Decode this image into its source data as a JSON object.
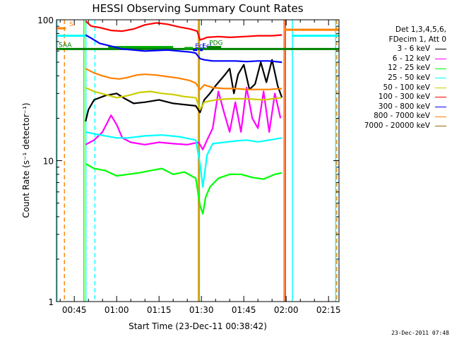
{
  "chart_data": {
    "type": "line",
    "title": "HESSI Observing Summary Count Rates",
    "xlabel": "Start Time (23-Dec-11 00:38:42)",
    "ylabel": "Count Rate (s⁻¹ detector⁻¹)",
    "x_unit": "minutes of 23-Dec-2011 UT",
    "xlim": [
      38.7,
      138.7
    ],
    "ylim": [
      1,
      100
    ],
    "y_scale": "log",
    "x_ticks": [
      {
        "value": 45,
        "label": "00:45"
      },
      {
        "value": 60,
        "label": "01:00"
      },
      {
        "value": 75,
        "label": "01:15"
      },
      {
        "value": 90,
        "label": "01:30"
      },
      {
        "value": 105,
        "label": "01:45"
      },
      {
        "value": 120,
        "label": "02:00"
      },
      {
        "value": 135,
        "label": "02:15"
      }
    ],
    "y_ticks": [
      {
        "value": 1,
        "label": "1"
      },
      {
        "value": 10,
        "label": "10"
      },
      {
        "value": 100,
        "label": "100"
      }
    ],
    "legend_header": [
      "Det 1,3,4,5,6,",
      "FDecim 1, Att 0"
    ],
    "legend_placement": "outside-right",
    "grid": false,
    "series": [
      {
        "name": "3 - 6 keV",
        "color": "#000000",
        "x": [
          49,
          50,
          52,
          56,
          60,
          63,
          66,
          70,
          75,
          80,
          84,
          88,
          89.5,
          91,
          93,
          95,
          98,
          100,
          101.5,
          103,
          105,
          107,
          109,
          111,
          113,
          115,
          117,
          118.5
        ],
        "y": [
          19,
          23,
          27,
          29,
          30,
          27.5,
          25.5,
          26,
          27,
          25.5,
          25,
          24.5,
          22,
          27,
          30,
          34,
          40,
          45,
          30,
          41,
          48,
          32,
          35,
          50,
          36,
          52,
          34,
          28
        ]
      },
      {
        "name": "6 - 12 keV",
        "color": "#ff00ff",
        "x": [
          49,
          52,
          55,
          58,
          60,
          62,
          65,
          70,
          75,
          80,
          85,
          89,
          90.5,
          92,
          94,
          96,
          98,
          100,
          102,
          104,
          106,
          108,
          110,
          112,
          114,
          116,
          118
        ],
        "y": [
          13,
          14,
          16,
          21,
          18,
          14.5,
          13.5,
          13,
          13.5,
          13.2,
          13,
          13.5,
          12,
          14,
          17,
          31,
          22,
          16,
          26,
          16,
          33,
          20,
          17,
          31,
          16,
          30,
          20
        ]
      },
      {
        "name": "12 - 25 keV",
        "color": "#00ff00",
        "x": [
          49,
          52,
          56,
          60,
          64,
          68,
          72,
          76,
          80,
          84,
          88,
          89.5,
          90.5,
          91.5,
          93,
          96,
          100,
          104,
          108,
          112,
          116,
          118.5
        ],
        "y": [
          9.5,
          8.8,
          8.5,
          7.8,
          8,
          8.2,
          8.5,
          8.8,
          8,
          8.3,
          7.5,
          4.8,
          4.2,
          5.5,
          6.5,
          7.5,
          8,
          8,
          7.6,
          7.4,
          8,
          8.2
        ]
      },
      {
        "name": "25 - 50 keV",
        "color": "#00ffff",
        "x": [
          49,
          52,
          56,
          60,
          64,
          70,
          76,
          82,
          88,
          89.5,
          90.5,
          92,
          94,
          98,
          102,
          106,
          110,
          114,
          118.5
        ],
        "y": [
          16,
          15.5,
          15,
          14.5,
          14.5,
          15,
          15.2,
          14.8,
          14,
          9.5,
          6.5,
          11,
          13.2,
          13.5,
          13.8,
          14,
          13.6,
          14,
          14.5
        ]
      },
      {
        "name": "50 - 100 keV",
        "color": "#cccc00",
        "x": [
          49,
          52,
          56,
          60,
          64,
          68,
          72,
          76,
          80,
          84,
          88,
          89.5,
          91,
          95,
          100,
          106,
          112,
          118.5
        ],
        "y": [
          33,
          31,
          29.5,
          28,
          29,
          30.5,
          31,
          30,
          29.5,
          28.5,
          28,
          23,
          26,
          27,
          27.5,
          27.5,
          27,
          28
        ]
      },
      {
        "name": "100 - 300 keV",
        "color": "#ff0000",
        "x": [
          49,
          51,
          54,
          58,
          62,
          66,
          70,
          74,
          78,
          82,
          86,
          88.5,
          89.5,
          90.5,
          92,
          96,
          100,
          105,
          110,
          115,
          118.5
        ],
        "y": [
          98,
          90,
          88,
          84,
          83,
          86,
          92,
          95,
          93,
          89,
          86,
          83,
          72,
          73,
          75,
          76,
          75,
          76,
          77,
          77,
          78
        ]
      },
      {
        "name": "300 - 800 keV",
        "color": "#0000ff",
        "x": [
          49,
          51,
          54,
          58,
          62,
          66,
          70,
          74,
          78,
          82,
          86,
          88,
          89.5,
          91,
          94,
          98,
          102,
          106,
          110,
          114,
          118.5
        ],
        "y": [
          78,
          74,
          68,
          65,
          62,
          61,
          60,
          60.5,
          61,
          60,
          59,
          58,
          53,
          52,
          51,
          51,
          51,
          50.5,
          51,
          51,
          50
        ]
      },
      {
        "name": "800 - 7000 keV",
        "color": "#ff8000",
        "x": [
          49,
          52,
          55,
          58,
          61,
          64,
          67,
          70,
          74,
          78,
          82,
          86,
          88,
          89.5,
          91,
          94,
          98,
          102,
          106,
          110,
          114,
          118.5
        ],
        "y": [
          45,
          42,
          40,
          38.5,
          38,
          39,
          40.5,
          41,
          40.5,
          39.5,
          38.5,
          37,
          35.5,
          32,
          34.5,
          33,
          32.5,
          32.5,
          32,
          32,
          32,
          32.5
        ]
      },
      {
        "name": "7000 - 20000 keV",
        "color": "#996600",
        "x": [],
        "y": []
      }
    ],
    "flag_bars": [
      {
        "label": "S",
        "color": "#ff8000",
        "x": [
          38.7,
          42
        ],
        "y": 87
      },
      {
        "label": "",
        "color": "#ff8000",
        "x": [
          119.5,
          138.7
        ],
        "y": 85
      },
      {
        "label": "",
        "color": "#00ffff",
        "x": [
          38.7,
          49
        ],
        "y": 77
      },
      {
        "label": "",
        "color": "#00ffff",
        "x": [
          122,
          138.7
        ],
        "y": 77
      },
      {
        "label": "SAA",
        "color": "#008000",
        "x": [
          38.7,
          138.7
        ],
        "y": 62
      },
      {
        "label": "Ecl",
        "color": "#0000ff",
        "x": [
          87,
          88.5
        ],
        "y": 61
      },
      {
        "label": "Ecl",
        "color": "#0000ff",
        "x": [
          89.5,
          90.5
        ],
        "y": 61
      },
      {
        "label": "",
        "color": "#00aa00",
        "x": [
          57,
          80
        ],
        "y": 64
      },
      {
        "label": "",
        "color": "#00aa00",
        "x": [
          84,
          87
        ],
        "y": 63
      },
      {
        "label": "PDG",
        "color": "#008000",
        "x": [
          92,
          97
        ],
        "y": 64
      }
    ],
    "vertical_markers": [
      {
        "x": 38.9,
        "color": "#00ffff",
        "style": "solid"
      },
      {
        "x": 41.5,
        "color": "#ff8000",
        "style": "dashed"
      },
      {
        "x": 48.4,
        "color": "#00ff00",
        "style": "solid"
      },
      {
        "x": 49.1,
        "color": "#00ffff",
        "style": "solid"
      },
      {
        "x": 52.3,
        "color": "#00ffff",
        "style": "dashed"
      },
      {
        "x": 88.9,
        "color": "#ff8000",
        "style": "solid"
      },
      {
        "x": 89.3,
        "color": "#00ff00",
        "style": "solid"
      },
      {
        "x": 119.2,
        "color": "#ff8000",
        "style": "solid"
      },
      {
        "x": 119.7,
        "color": "#ff0000",
        "style": "solid"
      },
      {
        "x": 122.2,
        "color": "#00ffff",
        "style": "solid"
      },
      {
        "x": 137.5,
        "color": "#00ffff",
        "style": "solid"
      },
      {
        "x": 137.9,
        "color": "#ff8000",
        "style": "dashed"
      }
    ]
  },
  "timestamp": "23-Dec-2011 07:48"
}
